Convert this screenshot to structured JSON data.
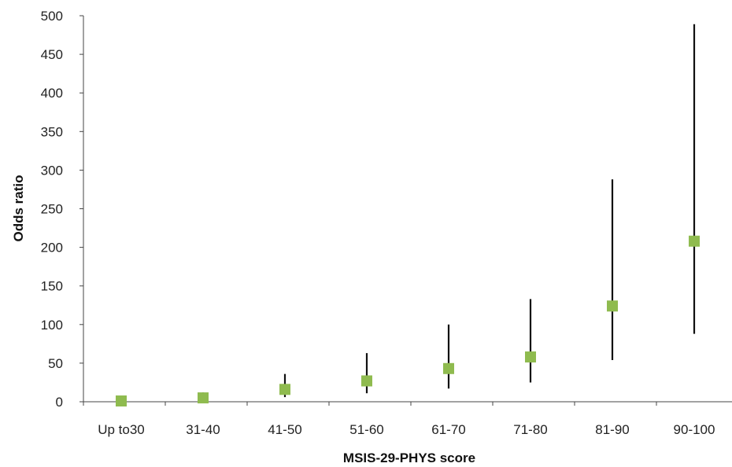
{
  "chart_data": {
    "type": "scatter",
    "title": "",
    "xlabel": "MSIS-29-PHYS score",
    "ylabel": "Odds ratio",
    "categories": [
      "Up to30",
      "31-40",
      "41-50",
      "51-60",
      "61-70",
      "71-80",
      "81-90",
      "90-100"
    ],
    "ylim": [
      0,
      500
    ],
    "yticks": [
      0,
      50,
      100,
      150,
      200,
      250,
      300,
      350,
      400,
      450,
      500
    ],
    "grid": false,
    "legend": "none",
    "series": [
      {
        "values": [
          1,
          5,
          16,
          27,
          43,
          58,
          124,
          208
        ],
        "lower": [
          1,
          2,
          6,
          11,
          17,
          25,
          54,
          88
        ],
        "upper": [
          1,
          12,
          36,
          63,
          100,
          133,
          288,
          489
        ]
      }
    ],
    "colors": {
      "marker": "#8fbb4f",
      "error_bar": "#111111",
      "axis": "#444444"
    }
  }
}
